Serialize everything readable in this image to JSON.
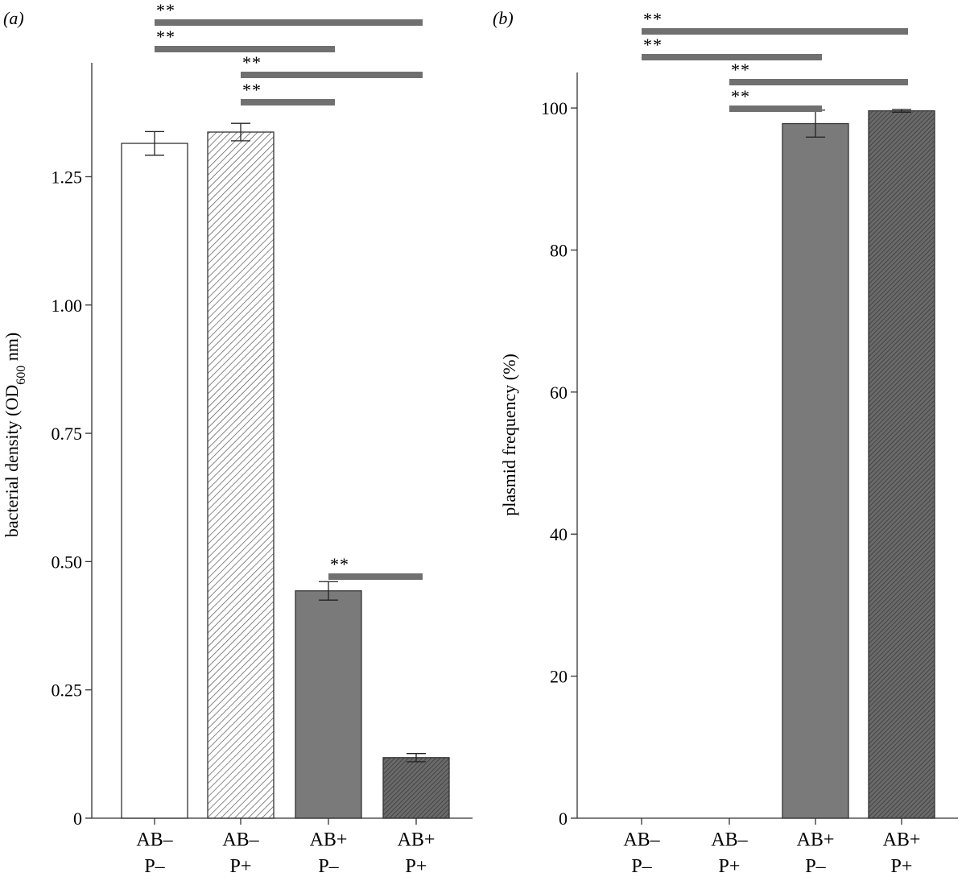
{
  "figure": {
    "panel_a_label": "(a)",
    "panel_b_label": "(b)"
  },
  "chart_data": [
    {
      "type": "bar",
      "panel": "(a)",
      "title": "",
      "xlabel": "",
      "ylabel": "bacterial density (OD",
      "ylabel_subscript": "600",
      "ylabel_suffix": " nm)",
      "ylim": [
        0,
        1.45
      ],
      "yticks": [
        0,
        0.25,
        0.5,
        0.75,
        1.0,
        1.25
      ],
      "ytick_labels": [
        "0",
        "0.25",
        "0.50",
        "0.75",
        "1.00",
        "1.25"
      ],
      "categories": [
        [
          "AB–",
          "P–"
        ],
        [
          "AB–",
          "P+"
        ],
        [
          "AB+",
          "P–"
        ],
        [
          "AB+",
          "P+"
        ]
      ],
      "values": [
        1.315,
        1.337,
        0.443,
        0.118
      ],
      "errors": [
        0.023,
        0.017,
        0.018,
        0.008
      ],
      "fills": [
        "white",
        "light-hatch",
        "#7a7a7a",
        "dark-hatch"
      ],
      "significance": [
        {
          "from": 0,
          "to": 3,
          "label": "**"
        },
        {
          "from": 0,
          "to": 2,
          "label": "**"
        },
        {
          "from": 1,
          "to": 3,
          "label": "**"
        },
        {
          "from": 1,
          "to": 2,
          "label": "**"
        },
        {
          "from": 2,
          "to": 3,
          "label": "**"
        }
      ],
      "grid": false
    },
    {
      "type": "bar",
      "panel": "(b)",
      "title": "",
      "xlabel": "",
      "ylabel": "plasmid frequency (%)",
      "ylim": [
        0,
        105
      ],
      "yticks": [
        0,
        20,
        40,
        60,
        80,
        100
      ],
      "ytick_labels": [
        "0",
        "20",
        "40",
        "60",
        "80",
        "100"
      ],
      "categories": [
        [
          "AB–",
          "P–"
        ],
        [
          "AB–",
          "P+"
        ],
        [
          "AB+",
          "P–"
        ],
        [
          "AB+",
          "P+"
        ]
      ],
      "values": [
        0,
        0,
        97.8,
        99.6
      ],
      "errors": [
        0,
        0,
        1.9,
        0.2
      ],
      "fills": [
        "white",
        "light-hatch",
        "#7a7a7a",
        "dark-hatch"
      ],
      "significance": [
        {
          "from": 0,
          "to": 3,
          "label": "**"
        },
        {
          "from": 0,
          "to": 2,
          "label": "**"
        },
        {
          "from": 1,
          "to": 3,
          "label": "**"
        },
        {
          "from": 1,
          "to": 2,
          "label": "**"
        }
      ],
      "grid": false
    }
  ]
}
